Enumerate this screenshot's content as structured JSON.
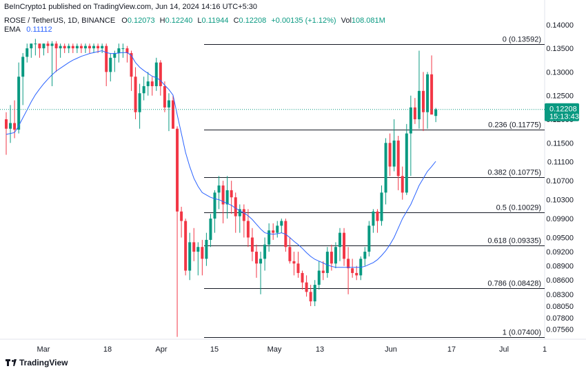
{
  "header": {
    "published_by": "BeInCrypto1 published on TradingView.com, Jun 14, 2024 14:16 UTC+5:30"
  },
  "legend": {
    "symbol": "ROSE / TetherUS, 1D, BINANCE",
    "open_label": "O",
    "open_value": "0.12073",
    "high_label": "H",
    "high_value": "0.12240",
    "low_label": "L",
    "low_value": "0.11944",
    "close_label": "C",
    "close_value": "0.12208",
    "change": "+0.00135 (+1.12%)",
    "vol_label": "Vol",
    "vol_value": "108.081M",
    "ema_label": "EMA",
    "ema_value": "0.11112"
  },
  "brand": {
    "name": "TradingView"
  },
  "chart_data": {
    "type": "candlestick",
    "title": "",
    "up_color": "#089981",
    "down_color": "#f23645",
    "ema_color": "#2962ff",
    "fib_color": "#131722",
    "ylim": [
      0.0735,
      0.1423
    ],
    "current_price": {
      "value": "0.12208",
      "countdown": "15:13:43",
      "color": "#089981"
    },
    "y_ticks": [
      "0.14000",
      "0.13500",
      "0.13000",
      "0.12500",
      "0.12000",
      "0.11500",
      "0.11100",
      "0.10700",
      "0.10300",
      "0.09900",
      "0.09500",
      "0.09200",
      "0.08900",
      "0.08600",
      "0.08300",
      "0.08050",
      "0.07800",
      "0.07560"
    ],
    "x_ticks": [
      "Mar",
      "18",
      "Apr",
      "15",
      "May",
      "13",
      "Jun",
      "17",
      "Jul",
      "1"
    ],
    "fib_levels": [
      {
        "ratio": "0",
        "price": 0.13592,
        "label": "0 (0.13592)"
      },
      {
        "ratio": "0.236",
        "price": 0.11775,
        "label": "0.236 (0.11775)"
      },
      {
        "ratio": "0.382",
        "price": 0.10775,
        "label": "0.382 (0.10775)"
      },
      {
        "ratio": "0.5",
        "price": 0.10029,
        "label": "0.5 (0.10029)"
      },
      {
        "ratio": "0.618",
        "price": 0.09335,
        "label": "0.618 (0.09335)"
      },
      {
        "ratio": "0.786",
        "price": 0.08428,
        "label": "0.786 (0.08428)"
      },
      {
        "ratio": "1",
        "price": 0.074,
        "label": "1 (0.07400)"
      }
    ],
    "candles": [
      {
        "o": 0.12,
        "h": 0.1215,
        "l": 0.1125,
        "c": 0.118
      },
      {
        "o": 0.118,
        "h": 0.123,
        "l": 0.115,
        "c": 0.1192
      },
      {
        "o": 0.1192,
        "h": 0.124,
        "l": 0.116,
        "c": 0.1178
      },
      {
        "o": 0.1178,
        "h": 0.132,
        "l": 0.117,
        "c": 0.129
      },
      {
        "o": 0.129,
        "h": 0.134,
        "l": 0.123,
        "c": 0.1332
      },
      {
        "o": 0.1332,
        "h": 0.136,
        "l": 0.132,
        "c": 0.135
      },
      {
        "o": 0.135,
        "h": 0.136,
        "l": 0.133,
        "c": 0.136
      },
      {
        "o": 0.136,
        "h": 0.137,
        "l": 0.1335,
        "c": 0.136
      },
      {
        "o": 0.136,
        "h": 0.136,
        "l": 0.133,
        "c": 0.135
      },
      {
        "o": 0.135,
        "h": 0.136,
        "l": 0.1335,
        "c": 0.136
      },
      {
        "o": 0.136,
        "h": 0.1365,
        "l": 0.134,
        "c": 0.1355
      },
      {
        "o": 0.1355,
        "h": 0.1365,
        "l": 0.127,
        "c": 0.136
      },
      {
        "o": 0.136,
        "h": 0.1365,
        "l": 0.13,
        "c": 0.135
      },
      {
        "o": 0.135,
        "h": 0.136,
        "l": 0.133,
        "c": 0.1355
      },
      {
        "o": 0.1355,
        "h": 0.136,
        "l": 0.134,
        "c": 0.135
      },
      {
        "o": 0.135,
        "h": 0.136,
        "l": 0.134,
        "c": 0.1355
      },
      {
        "o": 0.1355,
        "h": 0.136,
        "l": 0.134,
        "c": 0.135
      },
      {
        "o": 0.135,
        "h": 0.136,
        "l": 0.134,
        "c": 0.1355
      },
      {
        "o": 0.1355,
        "h": 0.136,
        "l": 0.134,
        "c": 0.135
      },
      {
        "o": 0.135,
        "h": 0.136,
        "l": 0.134,
        "c": 0.1355
      },
      {
        "o": 0.1355,
        "h": 0.136,
        "l": 0.134,
        "c": 0.135
      },
      {
        "o": 0.135,
        "h": 0.136,
        "l": 0.134,
        "c": 0.1355
      },
      {
        "o": 0.1355,
        "h": 0.136,
        "l": 0.134,
        "c": 0.135
      },
      {
        "o": 0.135,
        "h": 0.136,
        "l": 0.134,
        "c": 0.1355
      },
      {
        "o": 0.1355,
        "h": 0.136,
        "l": 0.127,
        "c": 0.13
      },
      {
        "o": 0.13,
        "h": 0.134,
        "l": 0.128,
        "c": 0.133
      },
      {
        "o": 0.133,
        "h": 0.1345,
        "l": 0.13,
        "c": 0.134
      },
      {
        "o": 0.134,
        "h": 0.136,
        "l": 0.132,
        "c": 0.135
      },
      {
        "o": 0.135,
        "h": 0.136,
        "l": 0.133,
        "c": 0.135
      },
      {
        "o": 0.135,
        "h": 0.1355,
        "l": 0.132,
        "c": 0.134
      },
      {
        "o": 0.134,
        "h": 0.1345,
        "l": 0.126,
        "c": 0.129
      },
      {
        "o": 0.129,
        "h": 0.131,
        "l": 0.12,
        "c": 0.1215
      },
      {
        "o": 0.1215,
        "h": 0.1275,
        "l": 0.118,
        "c": 0.1255
      },
      {
        "o": 0.1255,
        "h": 0.129,
        "l": 0.124,
        "c": 0.127
      },
      {
        "o": 0.127,
        "h": 0.13,
        "l": 0.125,
        "c": 0.128
      },
      {
        "o": 0.128,
        "h": 0.129,
        "l": 0.125,
        "c": 0.127
      },
      {
        "o": 0.127,
        "h": 0.133,
        "l": 0.126,
        "c": 0.132
      },
      {
        "o": 0.132,
        "h": 0.1325,
        "l": 0.125,
        "c": 0.127
      },
      {
        "o": 0.127,
        "h": 0.128,
        "l": 0.1215,
        "c": 0.1225
      },
      {
        "o": 0.1225,
        "h": 0.1255,
        "l": 0.1175,
        "c": 0.124
      },
      {
        "o": 0.124,
        "h": 0.125,
        "l": 0.1185,
        "c": 0.118
      },
      {
        "o": 0.118,
        "h": 0.1185,
        "l": 0.074,
        "c": 0.1005
      },
      {
        "o": 0.1005,
        "h": 0.1015,
        "l": 0.095,
        "c": 0.0985
      },
      {
        "o": 0.0985,
        "h": 0.099,
        "l": 0.087,
        "c": 0.088
      },
      {
        "o": 0.088,
        "h": 0.096,
        "l": 0.086,
        "c": 0.094
      },
      {
        "o": 0.094,
        "h": 0.097,
        "l": 0.09,
        "c": 0.092
      },
      {
        "o": 0.092,
        "h": 0.094,
        "l": 0.087,
        "c": 0.093
      },
      {
        "o": 0.093,
        "h": 0.0945,
        "l": 0.087,
        "c": 0.0905
      },
      {
        "o": 0.0905,
        "h": 0.096,
        "l": 0.089,
        "c": 0.0945
      },
      {
        "o": 0.0945,
        "h": 0.1,
        "l": 0.093,
        "c": 0.099
      },
      {
        "o": 0.099,
        "h": 0.105,
        "l": 0.096,
        "c": 0.1045
      },
      {
        "o": 0.1045,
        "h": 0.108,
        "l": 0.101,
        "c": 0.106
      },
      {
        "o": 0.106,
        "h": 0.107,
        "l": 0.098,
        "c": 0.102
      },
      {
        "o": 0.102,
        "h": 0.108,
        "l": 0.099,
        "c": 0.105
      },
      {
        "o": 0.105,
        "h": 0.107,
        "l": 0.1,
        "c": 0.1035
      },
      {
        "o": 0.1035,
        "h": 0.1045,
        "l": 0.096,
        "c": 0.0995
      },
      {
        "o": 0.0995,
        "h": 0.102,
        "l": 0.096,
        "c": 0.101
      },
      {
        "o": 0.101,
        "h": 0.102,
        "l": 0.095,
        "c": 0.0985
      },
      {
        "o": 0.0985,
        "h": 0.101,
        "l": 0.093,
        "c": 0.095
      },
      {
        "o": 0.095,
        "h": 0.097,
        "l": 0.09,
        "c": 0.092
      },
      {
        "o": 0.092,
        "h": 0.0935,
        "l": 0.0865,
        "c": 0.0895
      },
      {
        "o": 0.0895,
        "h": 0.092,
        "l": 0.083,
        "c": 0.0905
      },
      {
        "o": 0.0905,
        "h": 0.095,
        "l": 0.088,
        "c": 0.0935
      },
      {
        "o": 0.0935,
        "h": 0.098,
        "l": 0.092,
        "c": 0.0965
      },
      {
        "o": 0.0965,
        "h": 0.098,
        "l": 0.0945,
        "c": 0.096
      },
      {
        "o": 0.096,
        "h": 0.0985,
        "l": 0.095,
        "c": 0.0975
      },
      {
        "o": 0.0975,
        "h": 0.099,
        "l": 0.096,
        "c": 0.0985
      },
      {
        "o": 0.0985,
        "h": 0.099,
        "l": 0.092,
        "c": 0.093
      },
      {
        "o": 0.093,
        "h": 0.095,
        "l": 0.0895,
        "c": 0.09
      },
      {
        "o": 0.09,
        "h": 0.092,
        "l": 0.087,
        "c": 0.0895
      },
      {
        "o": 0.0895,
        "h": 0.092,
        "l": 0.0865,
        "c": 0.0875
      },
      {
        "o": 0.0875,
        "h": 0.088,
        "l": 0.084,
        "c": 0.0855
      },
      {
        "o": 0.0855,
        "h": 0.087,
        "l": 0.0825,
        "c": 0.0835
      },
      {
        "o": 0.0835,
        "h": 0.085,
        "l": 0.0805,
        "c": 0.0815
      },
      {
        "o": 0.0815,
        "h": 0.086,
        "l": 0.0805,
        "c": 0.085
      },
      {
        "o": 0.085,
        "h": 0.09,
        "l": 0.084,
        "c": 0.088
      },
      {
        "o": 0.088,
        "h": 0.09,
        "l": 0.086,
        "c": 0.0875
      },
      {
        "o": 0.0875,
        "h": 0.093,
        "l": 0.0865,
        "c": 0.092
      },
      {
        "o": 0.092,
        "h": 0.0935,
        "l": 0.088,
        "c": 0.0895
      },
      {
        "o": 0.0895,
        "h": 0.094,
        "l": 0.0885,
        "c": 0.093
      },
      {
        "o": 0.093,
        "h": 0.097,
        "l": 0.09,
        "c": 0.096
      },
      {
        "o": 0.096,
        "h": 0.097,
        "l": 0.089,
        "c": 0.0905
      },
      {
        "o": 0.0905,
        "h": 0.093,
        "l": 0.083,
        "c": 0.0885
      },
      {
        "o": 0.0885,
        "h": 0.0905,
        "l": 0.0865,
        "c": 0.0875
      },
      {
        "o": 0.0875,
        "h": 0.089,
        "l": 0.086,
        "c": 0.087
      },
      {
        "o": 0.087,
        "h": 0.091,
        "l": 0.086,
        "c": 0.0905
      },
      {
        "o": 0.0905,
        "h": 0.093,
        "l": 0.089,
        "c": 0.092
      },
      {
        "o": 0.092,
        "h": 0.0985,
        "l": 0.091,
        "c": 0.0975
      },
      {
        "o": 0.0975,
        "h": 0.101,
        "l": 0.096,
        "c": 0.1005
      },
      {
        "o": 0.1005,
        "h": 0.101,
        "l": 0.096,
        "c": 0.0985
      },
      {
        "o": 0.0985,
        "h": 0.106,
        "l": 0.0975,
        "c": 0.1045
      },
      {
        "o": 0.1045,
        "h": 0.116,
        "l": 0.102,
        "c": 0.115
      },
      {
        "o": 0.115,
        "h": 0.117,
        "l": 0.108,
        "c": 0.11
      },
      {
        "o": 0.11,
        "h": 0.12,
        "l": 0.109,
        "c": 0.1155
      },
      {
        "o": 0.1155,
        "h": 0.1165,
        "l": 0.105,
        "c": 0.108
      },
      {
        "o": 0.108,
        "h": 0.11,
        "l": 0.103,
        "c": 0.1045
      },
      {
        "o": 0.1045,
        "h": 0.119,
        "l": 0.104,
        "c": 0.117
      },
      {
        "o": 0.117,
        "h": 0.125,
        "l": 0.108,
        "c": 0.1225
      },
      {
        "o": 0.1225,
        "h": 0.1245,
        "l": 0.119,
        "c": 0.12
      },
      {
        "o": 0.12,
        "h": 0.1345,
        "l": 0.118,
        "c": 0.126
      },
      {
        "o": 0.126,
        "h": 0.13,
        "l": 0.1175,
        "c": 0.1215
      },
      {
        "o": 0.1215,
        "h": 0.13,
        "l": 0.118,
        "c": 0.1295
      },
      {
        "o": 0.1295,
        "h": 0.1335,
        "l": 0.121,
        "c": 0.121
      },
      {
        "o": 0.1207,
        "h": 0.1224,
        "l": 0.1194,
        "c": 0.1221
      }
    ],
    "ema": [
      0.1168,
      0.117,
      0.1172,
      0.1186,
      0.1203,
      0.122,
      0.1237,
      0.1252,
      0.1264,
      0.1275,
      0.1285,
      0.1294,
      0.1302,
      0.1308,
      0.1314,
      0.132,
      0.1325,
      0.1329,
      0.1333,
      0.1336,
      0.1339,
      0.1341,
      0.1343,
      0.1345,
      0.1341,
      0.1339,
      0.1339,
      0.134,
      0.1341,
      0.1341,
      0.1335,
      0.132,
      0.131,
      0.1303,
      0.1297,
      0.1291,
      0.1288,
      0.1282,
      0.1272,
      0.1263,
      0.1251,
      0.121,
      0.117,
      0.113,
      0.11,
      0.1075,
      0.1058,
      0.1045,
      0.104,
      0.1035,
      0.1032,
      0.103,
      0.1026,
      0.1022,
      0.1018,
      0.1012,
      0.1007,
      0.1002,
      0.0996,
      0.0988,
      0.0978,
      0.0968,
      0.096,
      0.0958,
      0.0957,
      0.0958,
      0.096,
      0.0957,
      0.095,
      0.0942,
      0.0935,
      0.0927,
      0.0918,
      0.091,
      0.0904,
      0.09,
      0.0896,
      0.0892,
      0.0889,
      0.0887,
      0.0887,
      0.0887,
      0.0887,
      0.0887,
      0.0887,
      0.0887,
      0.0889,
      0.0893,
      0.0897,
      0.0903,
      0.0912,
      0.0922,
      0.0935,
      0.095,
      0.097,
      0.099,
      0.1005,
      0.102,
      0.104,
      0.106,
      0.1075,
      0.109,
      0.11,
      0.1111
    ]
  }
}
